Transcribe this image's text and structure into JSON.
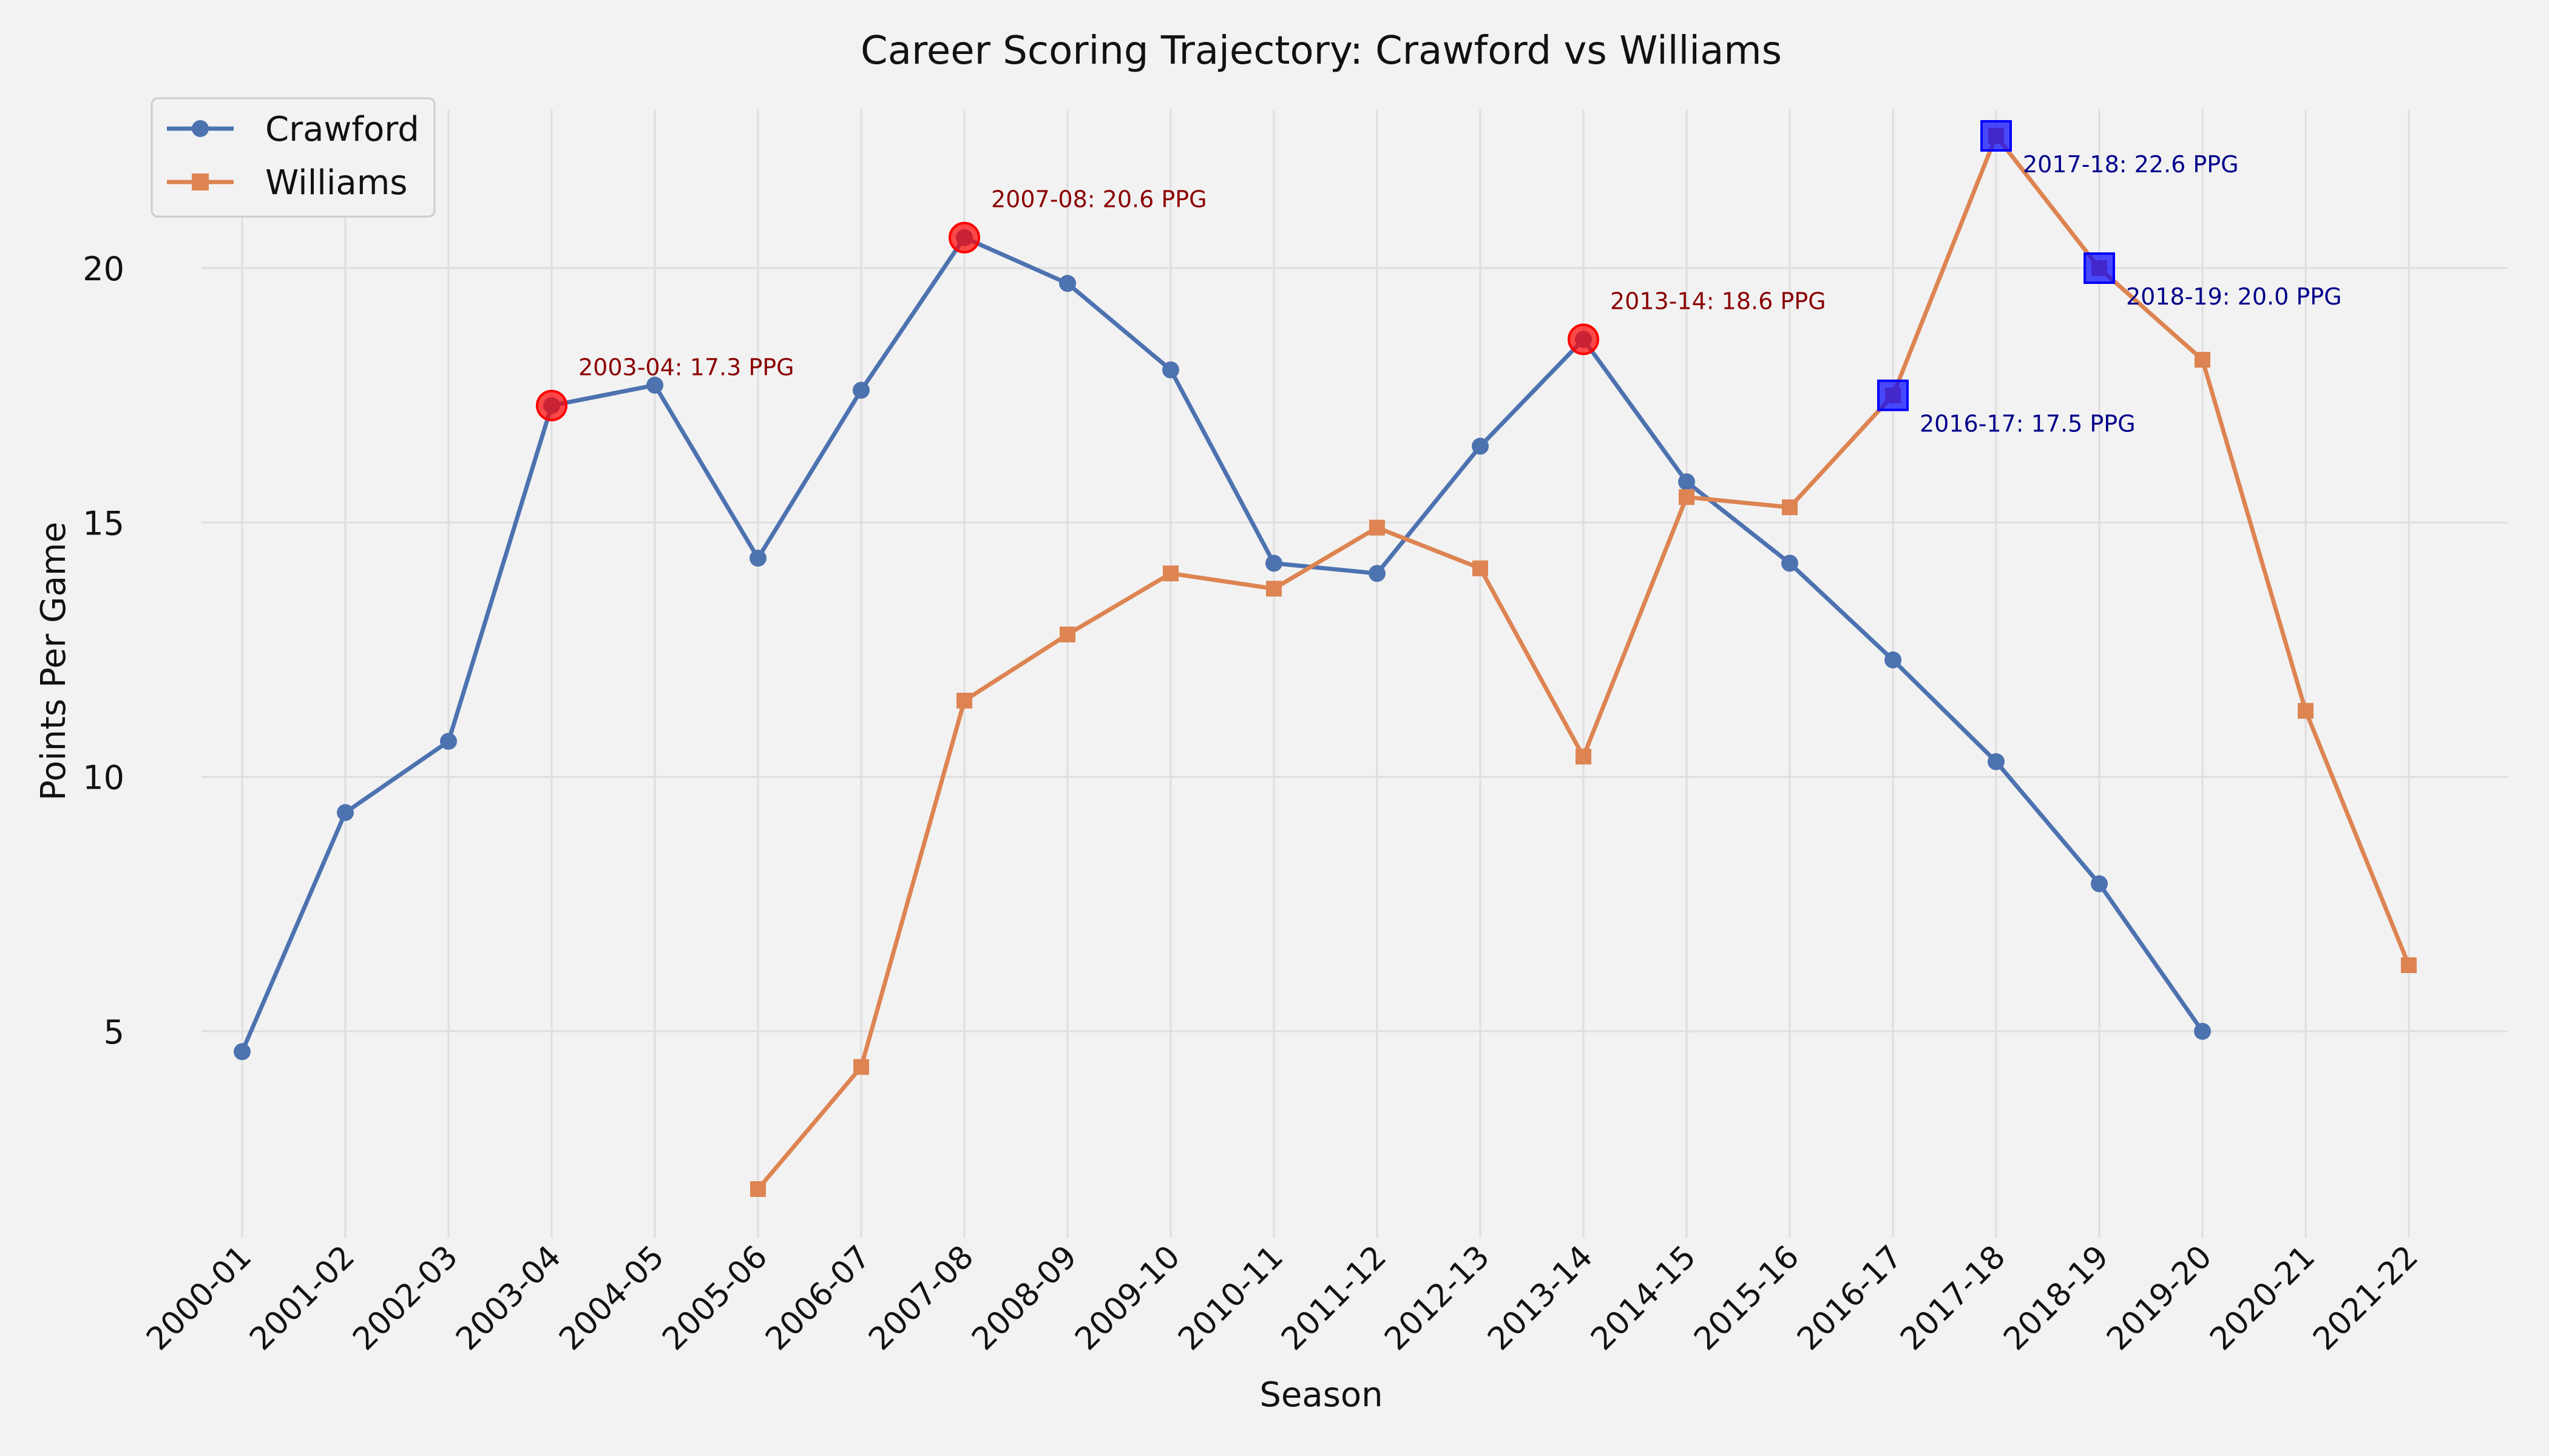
{
  "chart_data": {
    "type": "line",
    "title": "Career Scoring Trajectory: Crawford vs Williams",
    "xlabel": "Season",
    "ylabel": "Points Per Game",
    "categories": [
      "2000-01",
      "2001-02",
      "2002-03",
      "2003-04",
      "2004-05",
      "2005-06",
      "2006-07",
      "2007-08",
      "2008-09",
      "2009-10",
      "2010-11",
      "2011-12",
      "2012-13",
      "2013-14",
      "2014-15",
      "2015-16",
      "2016-17",
      "2017-18",
      "2018-19",
      "2019-20",
      "2020-21",
      "2021-22"
    ],
    "ylim": [
      1.0,
      23.6
    ],
    "yticks": [
      5,
      10,
      15,
      20
    ],
    "grid": true,
    "legend_position": "top-left",
    "series": [
      {
        "name": "Crawford",
        "color": "#4c72b0",
        "marker": "circle",
        "values": [
          4.6,
          9.3,
          10.7,
          17.3,
          17.7,
          14.3,
          17.6,
          20.6,
          19.7,
          18.0,
          14.2,
          14.0,
          16.5,
          18.6,
          15.8,
          14.2,
          12.3,
          10.3,
          7.9,
          5.0,
          null,
          null
        ]
      },
      {
        "name": "Williams",
        "color": "#dd8452",
        "marker": "square",
        "values": [
          null,
          null,
          null,
          null,
          null,
          1.9,
          4.3,
          11.5,
          12.8,
          14.0,
          13.7,
          14.9,
          14.1,
          10.4,
          15.5,
          15.3,
          17.5,
          22.6,
          20.0,
          18.2,
          11.3,
          6.3
        ]
      }
    ],
    "annotations": [
      {
        "series": 0,
        "index": 3,
        "text": "2003-04: 17.3 PPG",
        "color": "#8b0000",
        "highlight": "#ff0000"
      },
      {
        "series": 0,
        "index": 7,
        "text": "2007-08: 20.6 PPG",
        "color": "#8b0000",
        "highlight": "#ff0000"
      },
      {
        "series": 0,
        "index": 13,
        "text": "2013-14: 18.6 PPG",
        "color": "#8b0000",
        "highlight": "#ff0000"
      },
      {
        "series": 1,
        "index": 16,
        "text": "2016-17: 17.5 PPG",
        "color": "#00008b",
        "highlight": "#0000ff"
      },
      {
        "series": 1,
        "index": 17,
        "text": "2017-18: 22.6 PPG",
        "color": "#00008b",
        "highlight": "#0000ff"
      },
      {
        "series": 1,
        "index": 18,
        "text": "2018-19: 20.0 PPG",
        "color": "#00008b",
        "highlight": "#0000ff"
      }
    ]
  }
}
